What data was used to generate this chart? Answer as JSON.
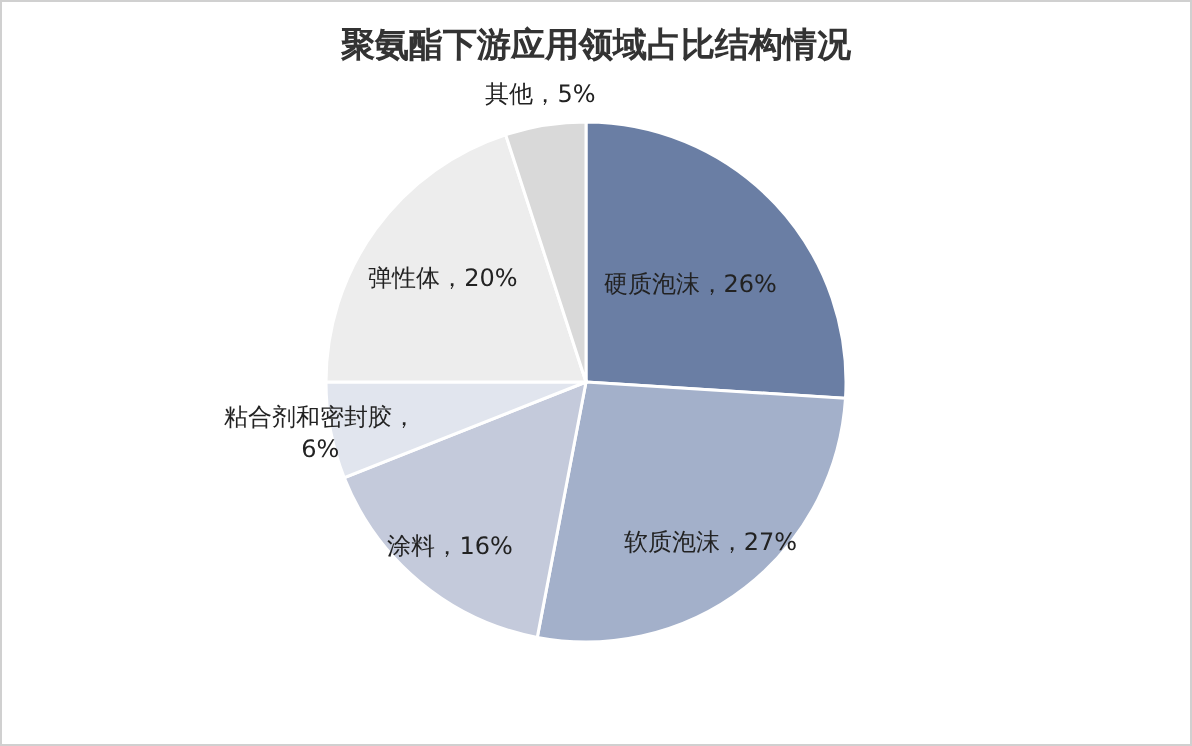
{
  "chart_data": {
    "type": "pie",
    "title": "聚氨酯下游应用领域占比结构情况",
    "categories": [
      "硬质泡沫",
      "软质泡沫",
      "涂料",
      "粘合剂和密封胶",
      "弹性体",
      "其他"
    ],
    "values": [
      26,
      27,
      16,
      6,
      20,
      5
    ],
    "colors": [
      "#6a7ea4",
      "#a3b0ca",
      "#c4cadb",
      "#e1e5ee",
      "#ededed",
      "#d9d9d9"
    ],
    "value_labels": [
      "，26%",
      "，27%",
      "，16%",
      "，\n6%",
      "，20%",
      "，5%"
    ]
  }
}
